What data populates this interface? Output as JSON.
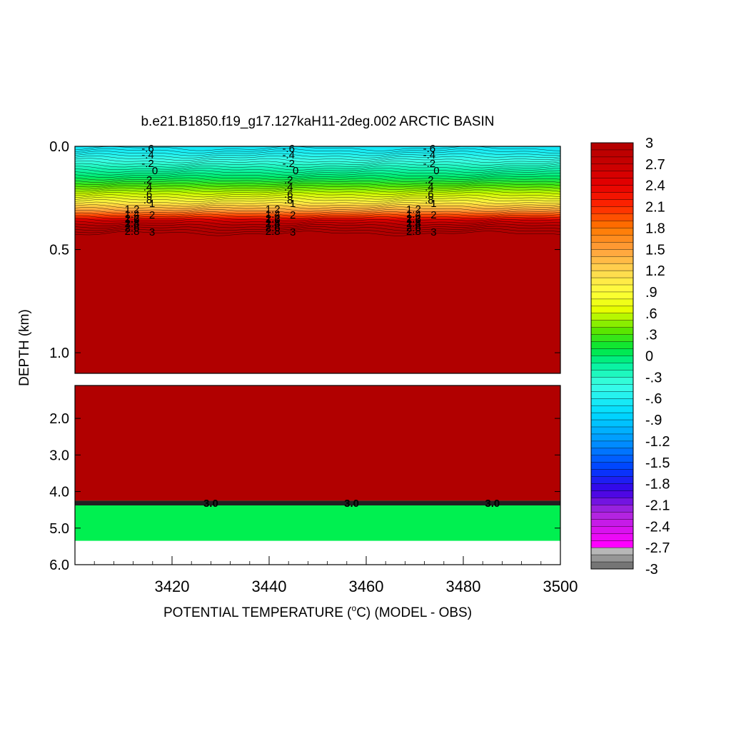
{
  "chart_data": {
    "type": "heatmap",
    "title": "b.e21.B1850.f19_g17.127kaH11-2deg.002 ARCTIC BASIN",
    "xlabel": "POTENTIAL TEMPERATURE (",
    "xlabel_degree": "o",
    "xlabel_tail": "C) (MODEL - OBS)",
    "ylabel": "DEPTH (km)",
    "xlim": [
      3400,
      3500
    ],
    "x_ticks": [
      3420,
      3440,
      3460,
      3480,
      3500
    ],
    "x_tick_labels": [
      "3420",
      "3440",
      "3460",
      "3480",
      "3500"
    ],
    "upper_panel": {
      "ylim": [
        0.0,
        1.1
      ],
      "y_ticks": [
        0.0,
        0.5,
        1.0
      ],
      "y_tick_labels": [
        "0.0",
        "0.5",
        "1.0"
      ]
    },
    "lower_panel": {
      "ylim": [
        1.1,
        6.0
      ],
      "y_ticks": [
        2.0,
        3.0,
        4.0,
        5.0,
        6.0
      ],
      "y_tick_labels": [
        "2.0",
        "3.0",
        "4.0",
        "5.0",
        "6.0"
      ]
    },
    "upper_profile": [
      {
        "depth": 0.0,
        "value": -0.7
      },
      {
        "depth": 0.03,
        "value": -0.6
      },
      {
        "depth": 0.07,
        "value": -0.4
      },
      {
        "depth": 0.11,
        "value": -0.2
      },
      {
        "depth": 0.15,
        "value": 0.0
      },
      {
        "depth": 0.19,
        "value": 0.3
      },
      {
        "depth": 0.23,
        "value": 0.6
      },
      {
        "depth": 0.27,
        "value": 1.0
      },
      {
        "depth": 0.31,
        "value": 1.5
      },
      {
        "depth": 0.335,
        "value": 2.0
      },
      {
        "depth": 0.355,
        "value": 2.5
      },
      {
        "depth": 0.38,
        "value": 2.9
      },
      {
        "depth": 0.41,
        "value": 3.0
      },
      {
        "depth": 1.1,
        "value": 3.0
      }
    ],
    "lower_bands": [
      {
        "from": 1.1,
        "to": 4.25,
        "value": 3.0
      },
      {
        "from": 4.25,
        "to": 4.38,
        "value": -3.0
      },
      {
        "from": 4.38,
        "to": 5.35,
        "value": 0.1
      }
    ],
    "upper_contour_labels": [
      [
        "-.6",
        "-.4",
        "-.2",
        "0",
        ".2",
        ".4",
        ".6",
        ".8",
        "1",
        "1.2",
        "1.4",
        "1.6",
        "1.8",
        "2",
        "2.2",
        "2.4",
        "2.6",
        "2.8",
        "3"
      ],
      [
        "-.6",
        "-.4",
        "-.2",
        "0",
        ".2",
        ".4",
        ".6",
        ".8",
        "1",
        "1.2",
        "1.4",
        "1.6",
        "1.8",
        "2",
        "2.2",
        "2.4",
        "2.6",
        "2.8",
        "3"
      ],
      [
        "-.6",
        "-.4",
        "-.2",
        "0",
        ".2",
        ".4",
        ".6",
        ".8",
        "1",
        "1.2",
        "1.4",
        "1.6",
        "1.8",
        "2",
        "2.2",
        "2.4",
        "2.6",
        "2.8",
        "3"
      ]
    ],
    "upper_contour_label_x": [
      3415,
      3444,
      3473
    ],
    "lower_contour_labels": [
      {
        "x": 3428,
        "text": "3.0"
      },
      {
        "x": 3457,
        "text": "3.0"
      },
      {
        "x": 3486,
        "text": "3.0"
      }
    ],
    "colorbar": {
      "labels": [
        "3",
        "2.7",
        "2.4",
        "2.1",
        "1.8",
        "1.5",
        "1.2",
        ".9",
        ".6",
        ".3",
        "0",
        "-.3",
        "-.6",
        "-.9",
        "-1.2",
        "-1.5",
        "-1.8",
        "-2.1",
        "-2.4",
        "-2.7",
        "-3"
      ],
      "values": [
        3,
        2.7,
        2.4,
        2.1,
        1.8,
        1.5,
        1.2,
        0.9,
        0.6,
        0.3,
        0,
        -0.3,
        -0.6,
        -0.9,
        -1.2,
        -1.5,
        -1.8,
        -2.1,
        -2.4,
        -2.7,
        -3
      ],
      "range": [
        -3,
        3
      ]
    },
    "colors": {
      "saturated": "#b10000",
      "deep_band": "#202020",
      "lower_green": "#00f050"
    }
  }
}
